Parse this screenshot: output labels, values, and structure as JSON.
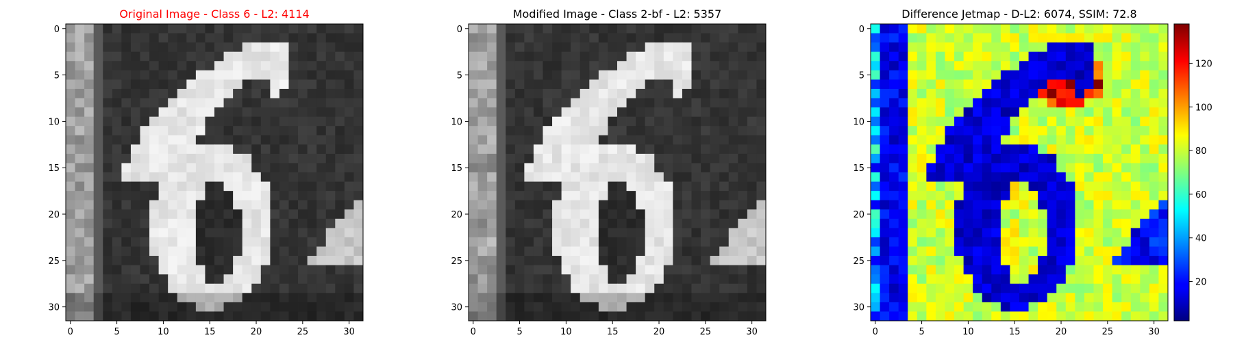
{
  "chart_data": [
    {
      "type": "heatmap",
      "title": "Original Image - Class 6 - L2: 4114",
      "title_color": "#ff0000",
      "colormap": "gray",
      "x_ticks": [
        0,
        5,
        10,
        15,
        20,
        25,
        30
      ],
      "y_ticks": [
        0,
        5,
        10,
        15,
        20,
        25,
        30
      ],
      "xlim": [
        -0.5,
        31.5
      ],
      "ylim": [
        31.5,
        -0.5
      ],
      "grid": false,
      "content": "32x32 grayscale image of the digit 6"
    },
    {
      "type": "heatmap",
      "title": "Modified Image - Class 2-bf - L2: 5357",
      "title_color": "#000000",
      "colormap": "gray",
      "x_ticks": [
        0,
        5,
        10,
        15,
        20,
        25,
        30
      ],
      "y_ticks": [
        0,
        5,
        10,
        15,
        20,
        25,
        30
      ],
      "xlim": [
        -0.5,
        31.5
      ],
      "ylim": [
        31.5,
        -0.5
      ],
      "grid": false,
      "content": "32x32 grayscale image of the digit 6 (perturbed)"
    },
    {
      "type": "heatmap",
      "title": "Difference Jetmap - D-L2: 6074, SSIM: 72.8",
      "title_color": "#000000",
      "colormap": "jet",
      "x_ticks": [
        0,
        5,
        10,
        15,
        20,
        25,
        30
      ],
      "y_ticks": [
        0,
        5,
        10,
        15,
        20,
        25,
        30
      ],
      "xlim": [
        -0.5,
        31.5
      ],
      "ylim": [
        31.5,
        -0.5
      ],
      "grid": false,
      "colorbar": {
        "min": 2,
        "max": 138,
        "ticks": [
          20,
          40,
          60,
          80,
          100,
          120
        ]
      }
    }
  ]
}
